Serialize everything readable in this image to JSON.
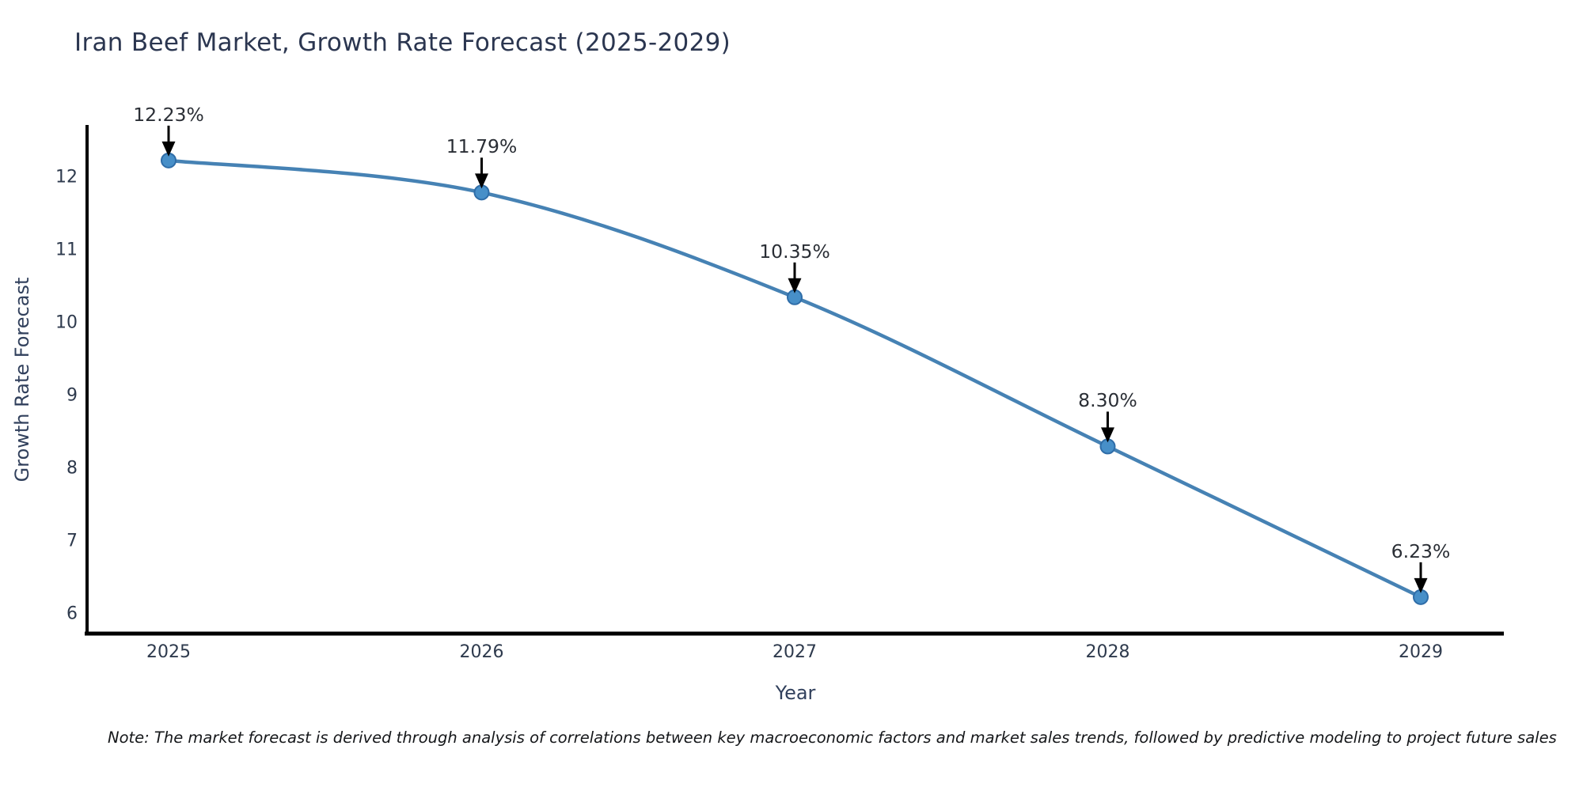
{
  "note": "Note: The market forecast is derived through analysis of correlations between key macroeconomic factors and market sales trends, followed by predictive modeling to project future sales",
  "chart_data": {
    "type": "line",
    "title": "Iran Beef Market, Growth Rate Forecast (2025-2029)",
    "xlabel": "Year",
    "ylabel": "Growth Rate Forecast",
    "categories": [
      "2025",
      "2026",
      "2027",
      "2028",
      "2029"
    ],
    "series": [
      {
        "name": "Growth Rate Forecast",
        "values": [
          12.23,
          11.79,
          10.35,
          8.3,
          6.23
        ]
      }
    ],
    "point_labels": [
      "12.23%",
      "11.79%",
      "10.35%",
      "8.30%",
      "6.23%"
    ],
    "yticks": [
      6,
      7,
      8,
      9,
      10,
      11,
      12
    ],
    "ylim": [
      5.7,
      12.7
    ],
    "grid": false,
    "legend": "none",
    "annotations_style": "value label above point with black arrow to marker",
    "colors": {
      "line": "#4682b4",
      "marker_fill": "#478fc8",
      "marker_edge": "#2f6da8",
      "arrow": "#000000",
      "spine": "#000000",
      "title_text": "#2b3650",
      "tick_text": "#2e3a4d",
      "axis_label_text": "#31405c",
      "note_text": "#15171a",
      "background": "#ffffff"
    }
  }
}
